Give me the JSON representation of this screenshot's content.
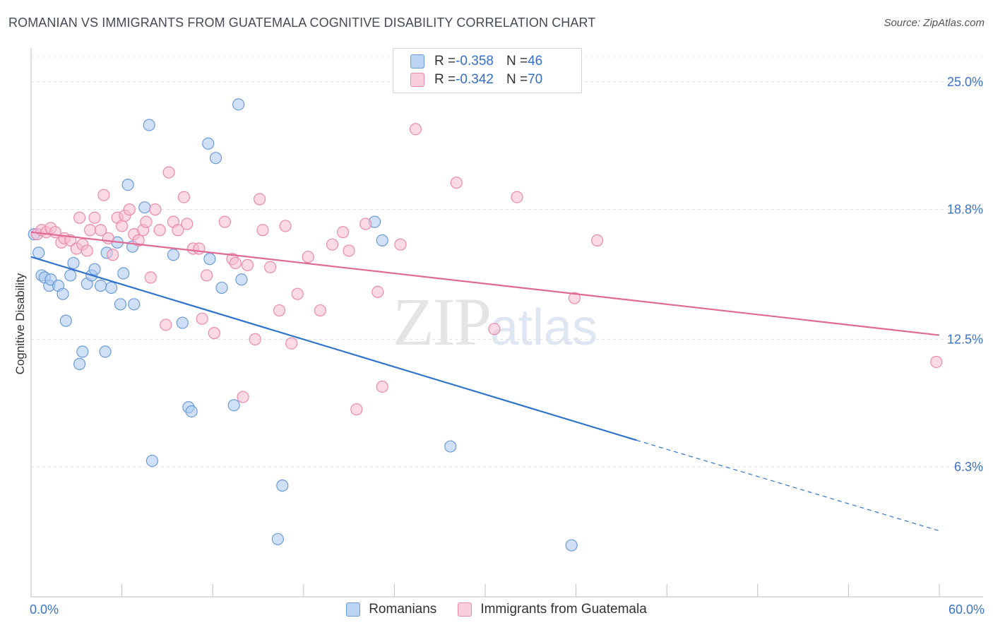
{
  "title": "ROMANIAN VS IMMIGRANTS FROM GUATEMALA COGNITIVE DISABILITY CORRELATION CHART",
  "source": "Source: ZipAtlas.com",
  "watermark": {
    "zip": "ZIP",
    "atlas": "atlas"
  },
  "legend": {
    "romanians": {
      "r_label": "R = ",
      "r_value": "-0.358",
      "n_label": "N = ",
      "n_value": "46"
    },
    "guatemala": {
      "r_label": "R = ",
      "r_value": "-0.342",
      "n_label": "N = ",
      "n_value": "70"
    }
  },
  "bottom_legend": {
    "romanians": "Romanians",
    "guatemala": "Immigrants from Guatemala"
  },
  "chart_data": {
    "type": "scatter",
    "title": "ROMANIAN VS IMMIGRANTS FROM GUATEMALA COGNITIVE DISABILITY CORRELATION CHART",
    "xlabel": "",
    "ylabel": "Cognitive Disability",
    "xlim": [
      0,
      60
    ],
    "ylim": [
      0,
      26.5
    ],
    "x_tick_labels": [
      "0.0%",
      "60.0%"
    ],
    "y_ticks": [
      6.3,
      12.5,
      18.8,
      25.0
    ],
    "y_tick_labels": [
      "6.3%",
      "12.5%",
      "18.8%",
      "25.0%"
    ],
    "grid": true,
    "colors": {
      "romanians_fill": "#a9c8f0",
      "romanians_stroke": "#6b9bd8",
      "romanians_line": "#2f74cc",
      "guatemala_fill": "#f7bcd0",
      "guatemala_stroke": "#e98aab",
      "guatemala_line": "#e06a95",
      "tick_label": "#3a73c9"
    },
    "series": [
      {
        "name": "Romanians",
        "trend": {
          "x0": 0,
          "y0": 16.5,
          "x1": 40,
          "y1": 7.6,
          "dash_x1": 60,
          "dash_y1": 3.2
        },
        "points": [
          [
            0.2,
            17.6
          ],
          [
            0.5,
            16.7
          ],
          [
            0.7,
            15.6
          ],
          [
            0.9,
            15.5
          ],
          [
            1.2,
            15.1
          ],
          [
            1.3,
            15.4
          ],
          [
            1.8,
            15.1
          ],
          [
            2.1,
            14.7
          ],
          [
            2.3,
            13.4
          ],
          [
            2.6,
            15.6
          ],
          [
            2.8,
            16.2
          ],
          [
            3.2,
            11.3
          ],
          [
            3.4,
            11.9
          ],
          [
            3.7,
            15.2
          ],
          [
            4.0,
            15.6
          ],
          [
            4.2,
            15.9
          ],
          [
            4.6,
            15.1
          ],
          [
            4.9,
            11.9
          ],
          [
            5.0,
            16.7
          ],
          [
            5.3,
            15.0
          ],
          [
            5.7,
            17.2
          ],
          [
            5.9,
            14.2
          ],
          [
            6.1,
            15.7
          ],
          [
            6.4,
            20.0
          ],
          [
            6.7,
            17.0
          ],
          [
            6.8,
            14.2
          ],
          [
            7.5,
            18.9
          ],
          [
            7.8,
            22.9
          ],
          [
            8.0,
            6.6
          ],
          [
            9.4,
            16.6
          ],
          [
            10.0,
            13.3
          ],
          [
            10.4,
            9.2
          ],
          [
            10.6,
            9.0
          ],
          [
            11.7,
            22.0
          ],
          [
            11.8,
            16.4
          ],
          [
            12.2,
            21.3
          ],
          [
            12.6,
            15.0
          ],
          [
            13.4,
            9.3
          ],
          [
            13.7,
            23.9
          ],
          [
            13.9,
            15.4
          ],
          [
            16.6,
            5.4
          ],
          [
            16.3,
            2.8
          ],
          [
            22.7,
            18.2
          ],
          [
            23.2,
            17.3
          ],
          [
            27.7,
            7.3
          ],
          [
            35.7,
            2.5
          ]
        ]
      },
      {
        "name": "Immigrants from Guatemala",
        "trend": {
          "x0": 0,
          "y0": 17.7,
          "x1": 60,
          "y1": 12.7
        },
        "points": [
          [
            0.4,
            17.6
          ],
          [
            0.7,
            17.8
          ],
          [
            1.0,
            17.7
          ],
          [
            1.3,
            17.9
          ],
          [
            1.6,
            17.7
          ],
          [
            2.0,
            17.2
          ],
          [
            2.2,
            17.4
          ],
          [
            2.6,
            17.3
          ],
          [
            3.0,
            16.9
          ],
          [
            3.2,
            18.4
          ],
          [
            3.4,
            17.1
          ],
          [
            3.7,
            16.8
          ],
          [
            3.9,
            17.8
          ],
          [
            4.2,
            18.4
          ],
          [
            4.6,
            17.8
          ],
          [
            4.8,
            19.5
          ],
          [
            5.1,
            17.4
          ],
          [
            5.4,
            16.6
          ],
          [
            5.7,
            18.4
          ],
          [
            6.0,
            18.0
          ],
          [
            6.2,
            18.5
          ],
          [
            6.5,
            18.8
          ],
          [
            6.8,
            17.6
          ],
          [
            7.1,
            17.3
          ],
          [
            7.4,
            17.8
          ],
          [
            7.6,
            18.2
          ],
          [
            7.9,
            15.5
          ],
          [
            8.2,
            18.8
          ],
          [
            8.5,
            17.8
          ],
          [
            8.9,
            13.2
          ],
          [
            9.1,
            20.6
          ],
          [
            9.4,
            18.2
          ],
          [
            9.7,
            17.8
          ],
          [
            10.1,
            19.4
          ],
          [
            10.3,
            18.1
          ],
          [
            10.7,
            16.9
          ],
          [
            11.1,
            16.9
          ],
          [
            11.3,
            13.5
          ],
          [
            11.6,
            15.6
          ],
          [
            12.1,
            12.8
          ],
          [
            12.8,
            18.2
          ],
          [
            13.3,
            16.4
          ],
          [
            13.5,
            16.2
          ],
          [
            14.0,
            9.7
          ],
          [
            14.3,
            16.1
          ],
          [
            14.8,
            12.5
          ],
          [
            15.1,
            19.3
          ],
          [
            15.3,
            17.8
          ],
          [
            15.8,
            16.0
          ],
          [
            16.4,
            13.9
          ],
          [
            16.8,
            18.0
          ],
          [
            17.2,
            12.3
          ],
          [
            17.6,
            14.7
          ],
          [
            18.3,
            16.5
          ],
          [
            19.1,
            13.9
          ],
          [
            19.9,
            17.1
          ],
          [
            20.6,
            17.7
          ],
          [
            21.0,
            16.8
          ],
          [
            21.5,
            9.1
          ],
          [
            22.1,
            18.1
          ],
          [
            22.9,
            14.8
          ],
          [
            23.2,
            10.2
          ],
          [
            24.4,
            17.1
          ],
          [
            25.4,
            22.7
          ],
          [
            28.1,
            20.1
          ],
          [
            30.6,
            13.0
          ],
          [
            32.1,
            19.4
          ],
          [
            35.9,
            14.5
          ],
          [
            37.4,
            17.3
          ],
          [
            59.8,
            11.4
          ]
        ]
      }
    ]
  }
}
